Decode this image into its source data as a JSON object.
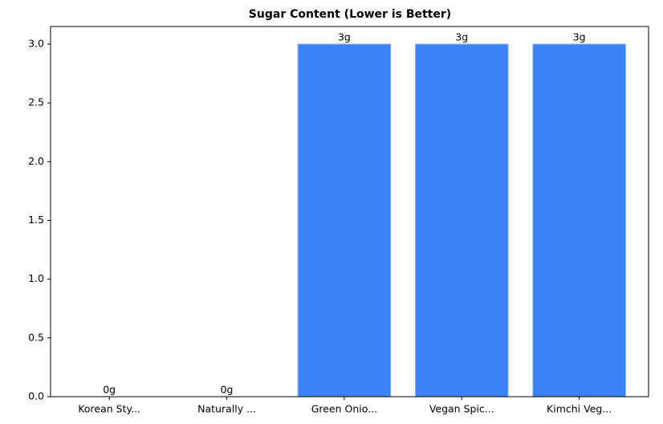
{
  "chart_data": {
    "type": "bar",
    "title": "Sugar Content (Lower is Better)",
    "categories": [
      "Korean Sty...",
      "Naturally ...",
      "Green Onio...",
      "Vegan Spic...",
      "Kimchi Veg..."
    ],
    "values": [
      0,
      0,
      3,
      3,
      3
    ],
    "value_labels": [
      "0g",
      "0g",
      "3g",
      "3g",
      "3g"
    ],
    "color": "#3b82f6",
    "ylim": [
      0,
      3.15
    ],
    "yticks": [
      {
        "value": 0,
        "label": "0.0"
      },
      {
        "value": 0.5,
        "label": "0.5"
      },
      {
        "value": 1,
        "label": "1.0"
      },
      {
        "value": 1.5,
        "label": "1.5"
      },
      {
        "value": 2,
        "label": "2.0"
      },
      {
        "value": 2.5,
        "label": "2.5"
      },
      {
        "value": 3,
        "label": "3.0"
      }
    ]
  }
}
